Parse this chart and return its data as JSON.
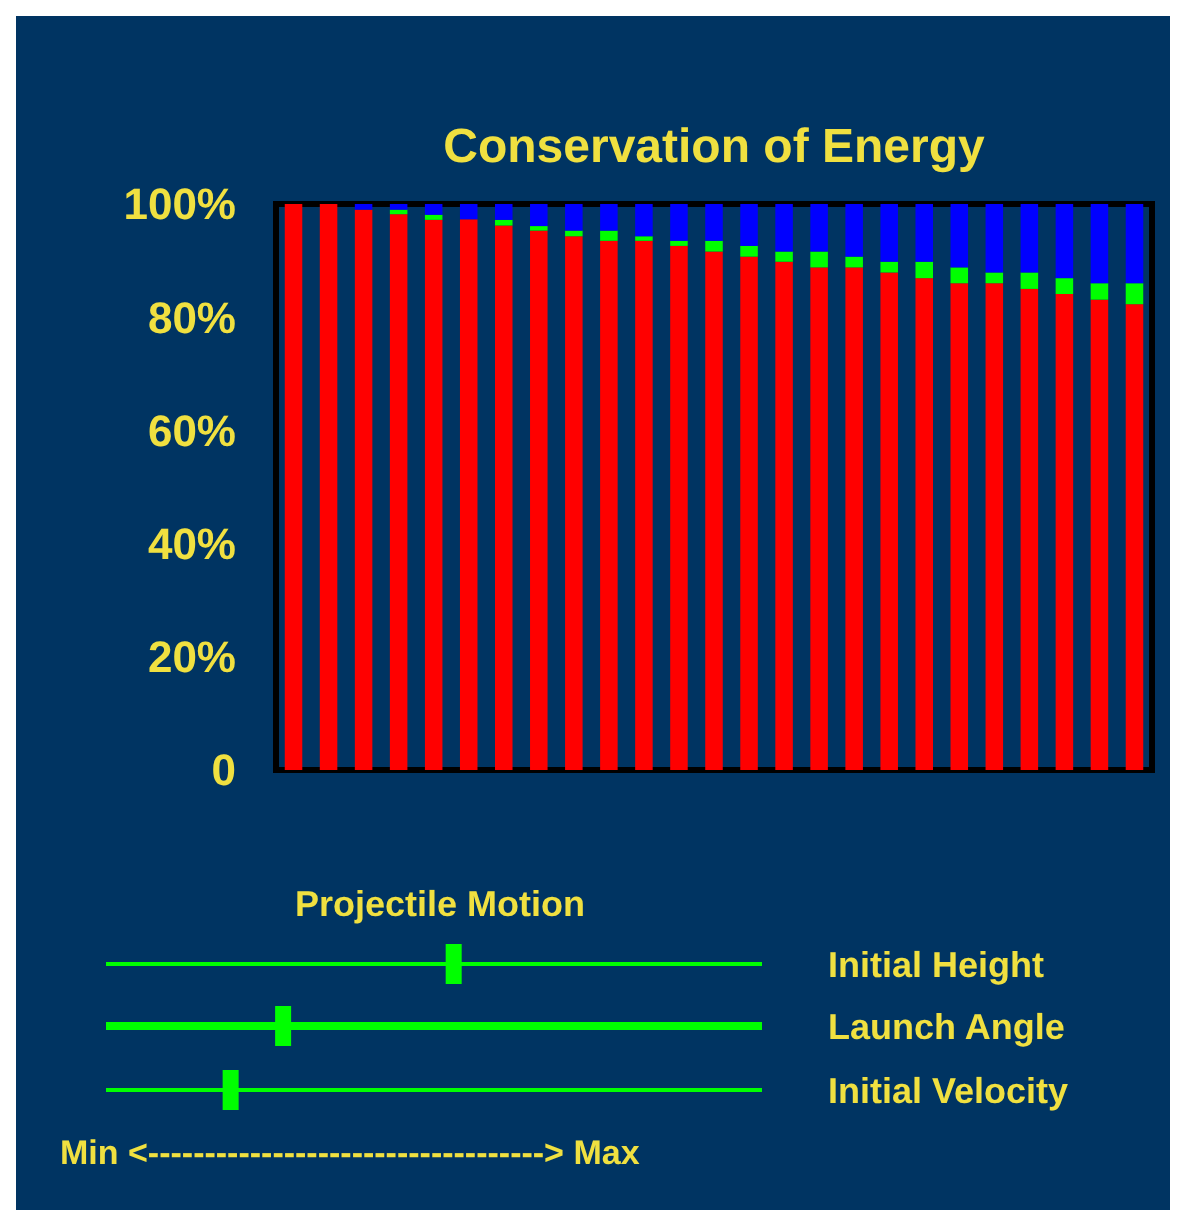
{
  "chart_data": {
    "type": "bar",
    "title": "Conservation of Energy",
    "stacked": true,
    "grid": false,
    "categories": [
      null,
      null,
      null,
      null,
      null,
      null,
      null,
      null,
      null,
      null,
      null,
      null,
      null,
      null,
      null,
      null,
      null,
      null,
      null,
      null,
      null,
      null,
      null,
      null,
      null
    ],
    "ylim": [
      0,
      100
    ],
    "yticks": [
      {
        "value": 0,
        "label": "0"
      },
      {
        "value": 20,
        "label": "20%"
      },
      {
        "value": 40,
        "label": "40%"
      },
      {
        "value": 60,
        "label": "60%"
      },
      {
        "value": 80,
        "label": "80%"
      },
      {
        "value": 100,
        "label": "100%"
      }
    ],
    "series": [
      {
        "color": "#ff0000",
        "values": [
          100,
          100,
          99,
          98.2,
          97.2,
          97.3,
          96.2,
          95.3,
          94.3,
          93.5,
          93.5,
          92.6,
          91.6,
          90.7,
          89.8,
          88.8,
          88.8,
          87.9,
          86.9,
          86,
          86,
          85,
          84.1,
          83.1,
          82.3
        ]
      },
      {
        "color": "#00ff00",
        "values": [
          0,
          0,
          0,
          0.8,
          0.9,
          0,
          1,
          0.8,
          1,
          1.8,
          0.8,
          0.9,
          1.9,
          1.9,
          1.8,
          2.8,
          1.9,
          1.9,
          2.9,
          2.8,
          1.9,
          2.9,
          2.8,
          2.9,
          3.7
        ]
      },
      {
        "color": "#0000ff",
        "values": [
          0,
          0,
          1,
          1,
          1.9,
          2.7,
          2.8,
          3.9,
          4.7,
          4.7,
          5.7,
          6.5,
          6.5,
          7.4,
          8.4,
          8.4,
          9.3,
          10.2,
          10.2,
          11.2,
          12.1,
          12.1,
          13.1,
          14,
          14
        ]
      }
    ],
    "annotations": [
      "Projectile Motion",
      "Initial Height",
      "Launch Angle",
      "Initial Velocity",
      "Min <-----------------------------------> Max"
    ]
  }
}
